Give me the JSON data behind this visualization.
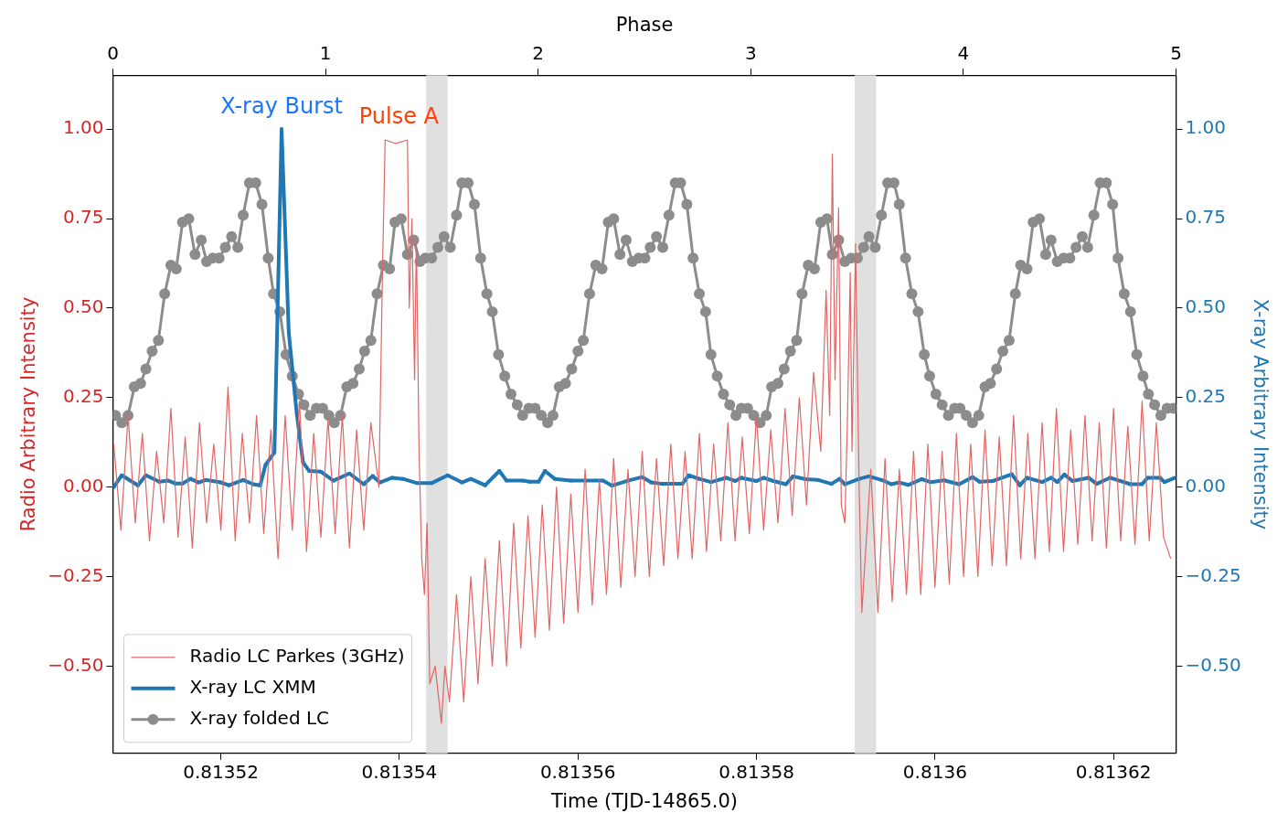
{
  "chart_data": {
    "type": "line",
    "xlabel": "Time (TJD-14865.0)",
    "x2label": "Phase",
    "ylabel": "Radio Arbitrary Intensity",
    "y2label": "X-ray Arbitrary Intensity",
    "xlim": [
      0.8135079,
      0.813627
    ],
    "xticks": [
      0.81352,
      0.81354,
      0.81356,
      0.81358,
      0.8136,
      0.81362
    ],
    "x2lim": [
      0,
      5
    ],
    "x2ticks": [
      0,
      1,
      2,
      3,
      4,
      5
    ],
    "ylim": [
      -0.744,
      1.151
    ],
    "yticks": [
      {
        "value": -0.5,
        "label": "−0.50"
      },
      {
        "value": -0.25,
        "label": "−0.25"
      },
      {
        "value": 0,
        "label": "0.00"
      },
      {
        "value": 0.25,
        "label": "0.25"
      },
      {
        "value": 0.5,
        "label": "0.50"
      },
      {
        "value": 0.75,
        "label": "0.75"
      },
      {
        "value": 1,
        "label": "1.00"
      }
    ],
    "y2lim": [
      -0.744,
      1.151
    ],
    "y2ticks": [
      {
        "value": -0.5,
        "label": "−0.50"
      },
      {
        "value": -0.25,
        "label": "−0.25"
      },
      {
        "value": 0,
        "label": "0.00"
      },
      {
        "value": 0.25,
        "label": "0.25"
      },
      {
        "value": 0.5,
        "label": "0.50"
      },
      {
        "value": 0.75,
        "label": "0.75"
      },
      {
        "value": 1,
        "label": "1.00"
      }
    ],
    "legend": "bottom left",
    "bands": [
      {
        "axis": "x",
        "from": 0.813543,
        "to": 0.8135454,
        "color": "#e0e0e0"
      },
      {
        "axis": "x",
        "from": 0.813591,
        "to": 0.8135934,
        "color": "#e0e0e0"
      }
    ],
    "annotations": [
      "X-ray Burst",
      "Pulse A"
    ],
    "series": [
      {
        "name": "Radio LC Parkes (3GHz)",
        "color": "#e06666",
        "marker": "none",
        "x": [
          0.813508,
          0.8135088,
          0.8135096,
          0.8135104,
          0.8135112,
          0.813512,
          0.8135128,
          0.8135136,
          0.8135144,
          0.8135152,
          0.813516,
          0.8135168,
          0.8135176,
          0.8135184,
          0.8135192,
          0.81352,
          0.8135208,
          0.8135216,
          0.8135224,
          0.8135232,
          0.813524,
          0.8135248,
          0.8135256,
          0.8135264,
          0.8135272,
          0.813528,
          0.8135288,
          0.8135296,
          0.8135304,
          0.8135312,
          0.813532,
          0.8135328,
          0.8135336,
          0.8135344,
          0.8135352,
          0.813536,
          0.8135368,
          0.8135377,
          0.8135381,
          0.8135384,
          0.8135396,
          0.8135409,
          0.8135411,
          0.8135414,
          0.8135417,
          0.8135419,
          0.8135422,
          0.8135425,
          0.8135428,
          0.8135431,
          0.8135434,
          0.813544,
          0.8135447,
          0.8135451,
          0.8135456,
          0.8135464,
          0.8135472,
          0.813548,
          0.8135488,
          0.8135496,
          0.8135504,
          0.8135512,
          0.813552,
          0.8135528,
          0.8135536,
          0.8135544,
          0.8135552,
          0.813556,
          0.8135568,
          0.8135576,
          0.8135584,
          0.8135592,
          0.81356,
          0.8135608,
          0.8135616,
          0.8135624,
          0.8135632,
          0.813564,
          0.8135648,
          0.8135656,
          0.8135664,
          0.8135672,
          0.813568,
          0.8135688,
          0.8135696,
          0.8135704,
          0.8135712,
          0.813572,
          0.8135728,
          0.8135736,
          0.8135744,
          0.8135752,
          0.813576,
          0.8135768,
          0.8135776,
          0.8135784,
          0.8135792,
          0.81358,
          0.8135808,
          0.8135816,
          0.8135824,
          0.8135832,
          0.813584,
          0.8135848,
          0.8135856,
          0.8135864,
          0.8135872,
          0.8135878,
          0.8135882,
          0.8135885,
          0.8135888,
          0.8135892,
          0.8135895,
          0.8135899,
          0.8135902,
          0.8135905,
          0.8135907,
          0.8135911,
          0.8135915,
          0.8135918,
          0.8135928,
          0.8135936,
          0.8135944,
          0.8135952,
          0.813596,
          0.8135968,
          0.8135976,
          0.8135984,
          0.8135992,
          0.8136,
          0.8136008,
          0.8136016,
          0.8136024,
          0.8136032,
          0.813604,
          0.8136048,
          0.8136056,
          0.8136064,
          0.8136072,
          0.813608,
          0.8136088,
          0.8136096,
          0.8136104,
          0.8136112,
          0.813612,
          0.8136128,
          0.8136136,
          0.8136144,
          0.8136152,
          0.813616,
          0.8136168,
          0.8136176,
          0.8136184,
          0.8136192,
          0.81362,
          0.8136208,
          0.8136216,
          0.8136224,
          0.8136232,
          0.813624,
          0.8136248,
          0.8136256,
          0.8136264
        ],
        "values": [
          0.12,
          -0.12,
          0.2,
          -0.1,
          0.15,
          -0.15,
          0.1,
          -0.1,
          0.22,
          -0.14,
          0.14,
          -0.17,
          0.18,
          -0.1,
          0.12,
          -0.12,
          0.28,
          -0.15,
          0.15,
          -0.1,
          0.2,
          -0.13,
          0.16,
          -0.2,
          0.2,
          -0.12,
          0.24,
          -0.18,
          0.15,
          -0.14,
          0.19,
          -0.13,
          0.2,
          -0.17,
          0.16,
          -0.12,
          0.18,
          0,
          0.6,
          0.97,
          0.96,
          0.97,
          0.5,
          0.75,
          0.3,
          0.7,
          0.1,
          -0.2,
          -0.3,
          -0.1,
          -0.55,
          -0.5,
          -0.66,
          -0.5,
          -0.6,
          -0.3,
          -0.6,
          -0.25,
          -0.55,
          -0.2,
          -0.5,
          -0.15,
          -0.5,
          -0.1,
          -0.45,
          -0.08,
          -0.42,
          -0.05,
          -0.4,
          0,
          -0.38,
          -0.02,
          -0.35,
          0.05,
          -0.33,
          0.02,
          -0.3,
          0.08,
          -0.28,
          0.05,
          -0.25,
          0.1,
          -0.25,
          0.08,
          -0.22,
          0.12,
          -0.2,
          0.1,
          -0.2,
          0.15,
          -0.18,
          0.12,
          -0.15,
          0.18,
          -0.15,
          0.14,
          -0.13,
          0.2,
          -0.12,
          0.16,
          -0.1,
          0.22,
          -0.08,
          0.25,
          -0.05,
          0.32,
          0.1,
          0.55,
          0.2,
          0.93,
          0.3,
          0.78,
          -0.05,
          -0.1,
          0.2,
          0.6,
          0.1,
          0.68,
          0,
          -0.35,
          0.05,
          -0.35,
          0.08,
          -0.32,
          0.05,
          -0.3,
          0.1,
          -0.3,
          0.12,
          -0.28,
          0.1,
          -0.27,
          0.15,
          -0.25,
          0.12,
          -0.25,
          0.16,
          -0.22,
          0.14,
          -0.22,
          0.2,
          -0.2,
          0.15,
          -0.2,
          0.18,
          -0.18,
          0.22,
          -0.18,
          0.16,
          -0.16,
          0.2,
          -0.15,
          0.18,
          -0.17,
          0.22,
          -0.15,
          0.17,
          -0.16,
          0.24,
          -0.15,
          0.18,
          -0.14,
          -0.2
        ]
      },
      {
        "name": "X-ray LC XMM",
        "color": "#1f77b4",
        "marker": "square",
        "x": [
          0.813508,
          0.8135089,
          0.8135107,
          0.8135116,
          0.8135131,
          0.8135141,
          0.8135149,
          0.8135157,
          0.8135166,
          0.8135175,
          0.8135183,
          0.81352,
          0.8135209,
          0.8135225,
          0.8135236,
          0.8135244,
          0.813525,
          0.813526,
          0.8135268,
          0.8135276,
          0.8135285,
          0.8135292,
          0.8135299,
          0.8135312,
          0.8135326,
          0.8135344,
          0.813536,
          0.813537,
          0.8135378,
          0.8135392,
          0.8135404,
          0.813542,
          0.8135436,
          0.8135454,
          0.813547,
          0.813548,
          0.8135496,
          0.8135512,
          0.813552,
          0.8135538,
          0.8135546,
          0.8135556,
          0.8135563,
          0.8135574,
          0.8135592,
          0.8135628,
          0.8135638,
          0.8135656,
          0.8135672,
          0.8135682,
          0.8135694,
          0.8135717,
          0.8135724,
          0.8135736,
          0.8135749,
          0.8135766,
          0.8135776,
          0.8135783,
          0.81358,
          0.8135808,
          0.8135819,
          0.8135833,
          0.8135841,
          0.8135855,
          0.8135869,
          0.8135884,
          0.8135893,
          0.8135899,
          0.8135915,
          0.8135926,
          0.8135941,
          0.8135951,
          0.813596,
          0.813597,
          0.8135985,
          0.8135995,
          0.813601,
          0.8136027,
          0.8136042,
          0.813605,
          0.8136065,
          0.8136086,
          0.8136095,
          0.8136103,
          0.813612,
          0.813613,
          0.8136137,
          0.8136145,
          0.8136154,
          0.8136172,
          0.8136181,
          0.8136196,
          0.8136219,
          0.8136232,
          0.8136238,
          0.8136252,
          0.8136257,
          0.8136269
        ],
        "values": [
          0,
          0.033,
          0.005,
          0.033,
          0.015,
          0.018,
          0.01,
          0.01,
          0.023,
          0.013,
          0.02,
          0.013,
          0.005,
          0.02,
          0.008,
          0.005,
          0.062,
          0.097,
          1,
          0.433,
          0.205,
          0.069,
          0.045,
          0.043,
          0.018,
          0.038,
          0.008,
          0.031,
          0.013,
          0.026,
          0.023,
          0.011,
          0.011,
          0.033,
          0.013,
          0.023,
          0.005,
          0.045,
          0.018,
          0.018,
          0.015,
          0.015,
          0.045,
          0.023,
          0.018,
          0.018,
          0.004,
          0.018,
          0.028,
          0.013,
          0.009,
          0.009,
          0.033,
          0.023,
          0.014,
          0.026,
          0.017,
          0.026,
          0.017,
          0.026,
          0.017,
          0.008,
          0.03,
          0.022,
          0.02,
          0.009,
          0.023,
          0.008,
          0.023,
          0.03,
          0.019,
          0.008,
          0.013,
          0.006,
          0.022,
          0.014,
          0.019,
          0.008,
          0.028,
          0.015,
          0.017,
          0.036,
          0.005,
          0.026,
          0.014,
          0.026,
          0.014,
          0.035,
          0.017,
          0.026,
          0.009,
          0.026,
          0.008,
          0.008,
          0.026,
          0.026,
          0.014,
          0.026
        ]
      },
      {
        "name": "X-ray folded LC",
        "color": "#8c8c8c",
        "marker": "circle",
        "x": [
          0.8135082,
          0.8135089,
          0.8135096,
          0.8135103,
          0.813511,
          0.8135116,
          0.8135123,
          0.813513,
          0.8135137,
          0.8135144,
          0.813515,
          0.8135157,
          0.8135164,
          0.8135171,
          0.8135178,
          0.8135184,
          0.8135191,
          0.8135198,
          0.8135205,
          0.8135212,
          0.8135219,
          0.8135225,
          0.8135232,
          0.8135239,
          0.8135246,
          0.8135253,
          0.8135259,
          0.8135266,
          0.8135273,
          0.813528,
          0.8135287,
          0.8135293,
          0.81353,
          0.8135307,
          0.8135314,
          0.8135321,
          0.8135327,
          0.8135334,
          0.8135341,
          0.8135348,
          0.8135355,
          0.8135361,
          0.8135368,
          0.8135375,
          0.8135382,
          0.8135389,
          0.8135395,
          0.8135402,
          0.8135409,
          0.8135416,
          0.8135423,
          0.8135429,
          0.8135436,
          0.8135443,
          0.813545,
          0.8135457,
          0.8135464,
          0.813547,
          0.8135477,
          0.8135484,
          0.8135491,
          0.8135498,
          0.8135504,
          0.8135511,
          0.8135518,
          0.8135525,
          0.8135532,
          0.8135538,
          0.8135545,
          0.8135552,
          0.8135559,
          0.8135566,
          0.8135572,
          0.8135579,
          0.8135586,
          0.8135593,
          0.81356,
          0.8135606,
          0.8135613,
          0.813562,
          0.8135627,
          0.8135634,
          0.813564,
          0.8135647,
          0.8135654,
          0.8135661,
          0.8135668,
          0.8135675,
          0.8135681,
          0.8135688,
          0.8135695,
          0.8135702,
          0.8135709,
          0.8135715,
          0.8135722,
          0.8135729,
          0.8135736,
          0.8135743,
          0.8135749,
          0.8135756,
          0.8135763,
          0.813577,
          0.8135777,
          0.8135783,
          0.813579,
          0.8135797,
          0.8135804,
          0.8135811,
          0.8135817,
          0.8135824,
          0.8135831,
          0.8135838,
          0.8135845,
          0.8135851,
          0.8135858,
          0.8135865,
          0.8135872,
          0.8135879,
          0.8135885,
          0.8135892,
          0.8135899,
          0.8135906,
          0.8135913,
          0.813592,
          0.8135926,
          0.8135933,
          0.813594,
          0.8135947,
          0.8135954,
          0.813596,
          0.8135967,
          0.8135974,
          0.8135981,
          0.8135988,
          0.8135994,
          0.8136001,
          0.8136008,
          0.8136015,
          0.8136022,
          0.8136028,
          0.8136035,
          0.8136042,
          0.8136049,
          0.8136056,
          0.8136062,
          0.8136069,
          0.8136076,
          0.8136083,
          0.813609,
          0.8136096,
          0.8136103,
          0.813611,
          0.8136117,
          0.8136124,
          0.813613,
          0.8136137,
          0.8136144,
          0.8136151,
          0.8136158,
          0.8136165,
          0.8136171,
          0.8136178,
          0.8136185,
          0.8136192,
          0.8136199,
          0.8136205,
          0.8136212,
          0.8136219,
          0.8136226,
          0.8136233,
          0.8136239,
          0.8136246,
          0.8136253,
          0.813626,
          0.8136267
        ],
        "values": [
          0.2,
          0.18,
          0.2,
          0.28,
          0.29,
          0.33,
          0.38,
          0.41,
          0.54,
          0.62,
          0.61,
          0.74,
          0.75,
          0.65,
          0.69,
          0.63,
          0.64,
          0.64,
          0.67,
          0.7,
          0.67,
          0.76,
          0.85,
          0.85,
          0.79,
          0.64,
          0.54,
          0.49,
          0.37,
          0.31,
          0.26,
          0.23,
          0.2,
          0.22,
          0.22,
          0.2,
          0.18,
          0.2,
          0.28,
          0.29,
          0.33,
          0.38,
          0.41,
          0.54,
          0.62,
          0.61,
          0.74,
          0.75,
          0.65,
          0.69,
          0.63,
          0.64,
          0.64,
          0.67,
          0.7,
          0.67,
          0.76,
          0.85,
          0.85,
          0.79,
          0.64,
          0.54,
          0.49,
          0.37,
          0.31,
          0.26,
          0.23,
          0.2,
          0.22,
          0.22,
          0.2,
          0.18,
          0.2,
          0.28,
          0.29,
          0.33,
          0.38,
          0.41,
          0.54,
          0.62,
          0.61,
          0.74,
          0.75,
          0.65,
          0.69,
          0.63,
          0.64,
          0.64,
          0.67,
          0.7,
          0.67,
          0.76,
          0.85,
          0.85,
          0.79,
          0.64,
          0.54,
          0.49,
          0.37,
          0.31,
          0.26,
          0.23,
          0.2,
          0.22,
          0.22,
          0.2,
          0.18,
          0.2,
          0.28,
          0.29,
          0.33,
          0.38,
          0.41,
          0.54,
          0.62,
          0.61,
          0.74,
          0.75,
          0.65,
          0.69,
          0.63,
          0.64,
          0.64,
          0.67,
          0.7,
          0.67,
          0.76,
          0.85,
          0.85,
          0.79,
          0.64,
          0.54,
          0.49,
          0.37,
          0.31,
          0.26,
          0.23,
          0.2,
          0.22,
          0.22,
          0.2,
          0.18,
          0.2,
          0.28,
          0.29,
          0.33,
          0.38,
          0.41,
          0.54,
          0.62,
          0.61,
          0.74,
          0.75,
          0.65,
          0.69,
          0.63,
          0.64,
          0.64,
          0.67,
          0.7,
          0.67,
          0.76,
          0.85,
          0.85,
          0.79,
          0.64,
          0.54,
          0.49,
          0.37,
          0.31,
          0.26,
          0.23,
          0.2,
          0.22,
          0.22
        ]
      }
    ]
  }
}
